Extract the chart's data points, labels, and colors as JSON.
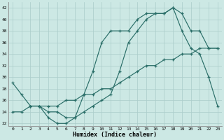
{
  "xlabel": "Humidex (Indice chaleur)",
  "bg_color": "#cce8e4",
  "grid_color": "#aaccca",
  "line_color": "#2a6e68",
  "xlim": [
    -0.5,
    23.5
  ],
  "ylim": [
    21.5,
    43
  ],
  "yticks": [
    22,
    24,
    26,
    28,
    30,
    32,
    34,
    36,
    38,
    40,
    42
  ],
  "xticks": [
    0,
    1,
    2,
    3,
    4,
    5,
    6,
    7,
    8,
    9,
    10,
    11,
    12,
    13,
    14,
    15,
    16,
    17,
    18,
    19,
    20,
    21,
    22,
    23
  ],
  "series": [
    {
      "x": [
        0,
        1,
        2,
        3,
        4,
        5,
        6,
        7,
        8,
        9,
        10,
        11,
        12,
        13,
        14,
        15,
        16,
        17,
        18,
        19,
        20,
        21,
        22,
        23
      ],
      "y": [
        29,
        27,
        25,
        25,
        23,
        22,
        22,
        23,
        27,
        31,
        36,
        38,
        38,
        38,
        40,
        41,
        41,
        41,
        42,
        41,
        38,
        38,
        35,
        35
      ]
    },
    {
      "x": [
        0,
        1,
        2,
        3,
        4,
        5,
        6,
        7,
        8,
        9,
        10,
        11,
        12,
        13,
        14,
        15,
        16,
        17,
        18,
        19,
        20,
        21,
        22,
        23
      ],
      "y": [
        24,
        24,
        25,
        25,
        25,
        25,
        26,
        26,
        27,
        27,
        28,
        28,
        29,
        30,
        31,
        32,
        32,
        33,
        33,
        34,
        34,
        35,
        35,
        35
      ]
    },
    {
      "x": [
        2,
        3,
        4,
        5,
        6,
        7,
        8,
        9,
        10,
        11,
        12,
        13,
        14,
        15,
        16,
        17,
        18,
        19,
        20,
        21,
        22,
        23
      ],
      "y": [
        25,
        25,
        24,
        24,
        23,
        23,
        24,
        25,
        26,
        27,
        31,
        36,
        38,
        40,
        41,
        41,
        42,
        38,
        35,
        34,
        30,
        25
      ]
    }
  ]
}
